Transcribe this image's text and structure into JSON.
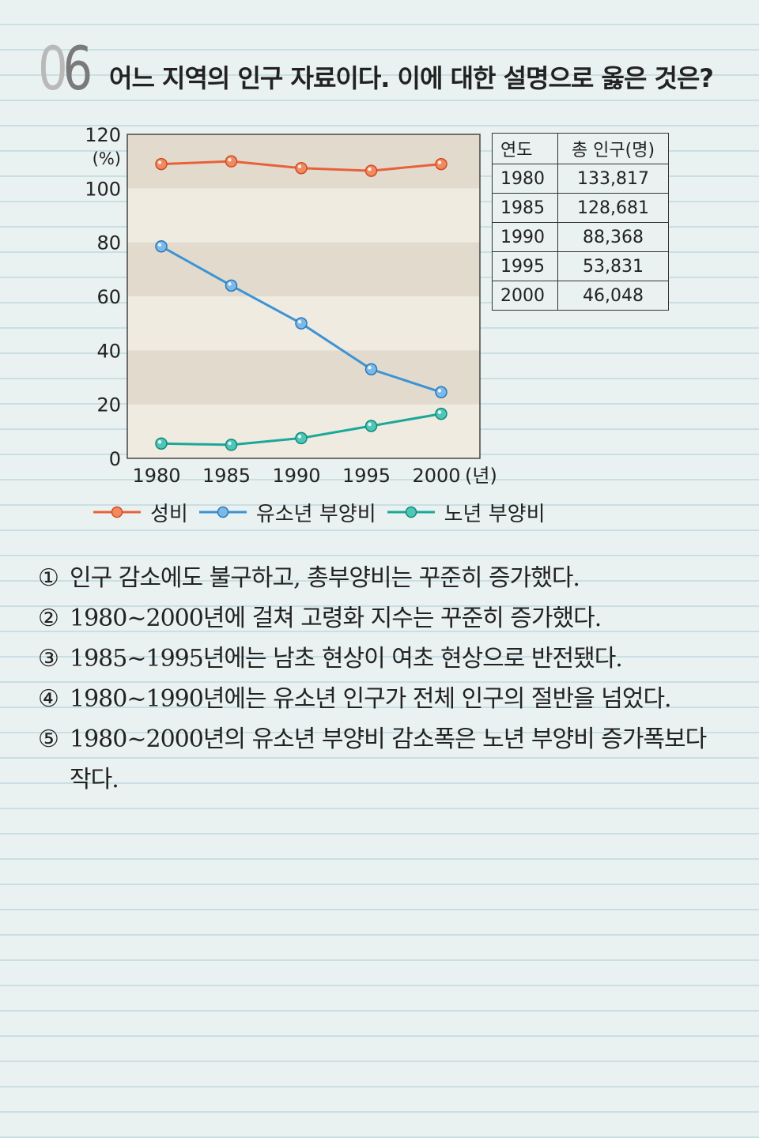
{
  "question": {
    "number_first": "0",
    "number_second": "6",
    "title": "어느 지역의 인구 자료이다. 이에 대한 설명으로 옳은 것은?"
  },
  "chart_data": {
    "type": "line",
    "x": [
      1980,
      1985,
      1990,
      1995,
      2000
    ],
    "x_tick_labels": [
      "1980",
      "1985",
      "1990",
      "1995",
      "2000"
    ],
    "x_unit": "(년)",
    "y_unit": "(%)",
    "ylim": [
      0,
      120
    ],
    "y_ticks": [
      0,
      20,
      40,
      60,
      80,
      100,
      120
    ],
    "series": [
      {
        "name": "성비",
        "color": "#e8613a",
        "values": [
          109,
          110,
          107.5,
          106.5,
          109
        ]
      },
      {
        "name": "유소년 부양비",
        "color": "#3d93d5",
        "values": [
          78.5,
          64,
          50,
          33,
          24.5
        ]
      },
      {
        "name": "노년 부양비",
        "color": "#1aa899",
        "values": [
          5.5,
          5,
          7.5,
          12,
          16.5
        ]
      }
    ],
    "band_colors": [
      "#e2dbcd",
      "#efebe0"
    ],
    "grid": false,
    "legend_position": "bottom"
  },
  "table": {
    "headers": [
      "연도",
      "총 인구(명)"
    ],
    "rows": [
      [
        "1980",
        "133,817"
      ],
      [
        "1985",
        "128,681"
      ],
      [
        "1990",
        "88,368"
      ],
      [
        "1995",
        "53,831"
      ],
      [
        "2000",
        "46,048"
      ]
    ]
  },
  "options": [
    {
      "marker": "①",
      "text": "인구 감소에도 불구하고, 총부양비는 꾸준히 증가했다."
    },
    {
      "marker": "②",
      "text": "1980~2000년에 걸쳐 고령화 지수는 꾸준히 증가했다."
    },
    {
      "marker": "③",
      "text": "1985~1995년에는 남초 현상이 여초 현상으로 반전됐다."
    },
    {
      "marker": "④",
      "text": "1980~1990년에는 유소년 인구가 전체 인구의 절반을 넘었다."
    },
    {
      "marker": "⑤",
      "text": "1980~2000년의 유소년 부양비 감소폭은 노년 부양비 증가폭보다",
      "text_cont": "작다."
    }
  ]
}
